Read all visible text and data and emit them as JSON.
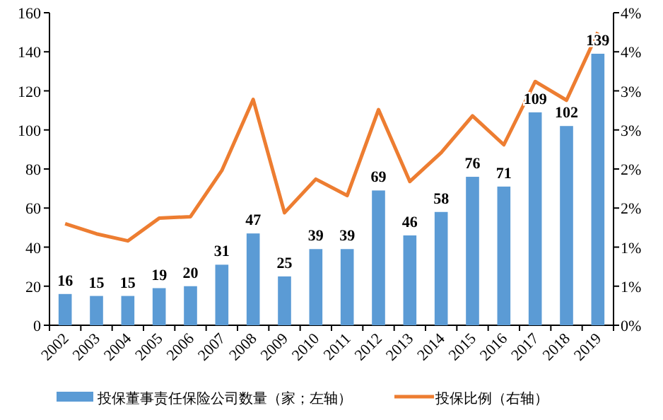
{
  "chart_data": {
    "type": "bar",
    "categories": [
      "2002",
      "2003",
      "2004",
      "2005",
      "2006",
      "2007",
      "2008",
      "2009",
      "2010",
      "2011",
      "2012",
      "2013",
      "2014",
      "2015",
      "2016",
      "2017",
      "2018",
      "2019"
    ],
    "series": [
      {
        "name": "投保董事责任保险公司数量（家；左轴）",
        "color": "#5b9bd5",
        "values": [
          16,
          15,
          15,
          19,
          20,
          31,
          47,
          25,
          39,
          39,
          69,
          46,
          58,
          76,
          71,
          109,
          102,
          139
        ],
        "value_labels": [
          "16",
          "15",
          "15",
          "19",
          "20",
          "31",
          "47",
          "25",
          "39",
          "39",
          "69",
          "46",
          "58",
          "76",
          "71",
          "109",
          "102",
          "139"
        ]
      },
      {
        "name": "投保比例（右轴）",
        "type": "line",
        "axis": "y2",
        "color": "#ed7d31",
        "values": [
          1.3,
          1.17,
          1.08,
          1.37,
          1.39,
          1.98,
          2.89,
          1.44,
          1.87,
          1.66,
          2.76,
          1.84,
          2.21,
          2.68,
          2.31,
          3.12,
          2.88,
          3.75
        ]
      }
    ],
    "ylim": [
      0,
      160
    ],
    "yticks": [
      0,
      20,
      40,
      60,
      80,
      100,
      120,
      140,
      160
    ],
    "y2lim": [
      0,
      4
    ],
    "y2ticks": [
      {
        "value": 0,
        "label": "0%"
      },
      {
        "value": 0.5,
        "label": "1%"
      },
      {
        "value": 1,
        "label": "1%"
      },
      {
        "value": 1.5,
        "label": "2%"
      },
      {
        "value": 2,
        "label": "2%"
      },
      {
        "value": 2.5,
        "label": "3%"
      },
      {
        "value": 3,
        "label": "3%"
      },
      {
        "value": 3.5,
        "label": "4%"
      },
      {
        "value": 4,
        "label": "4%"
      }
    ],
    "legend": "bottom",
    "grid": false
  }
}
